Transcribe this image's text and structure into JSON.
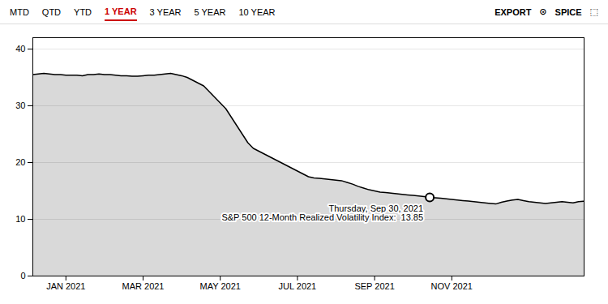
{
  "chart_data": {
    "type": "area",
    "x": [
      0,
      1,
      2,
      3,
      4,
      5,
      6,
      7,
      8,
      9,
      10,
      11,
      12,
      13,
      14,
      15,
      16,
      17,
      18,
      19,
      20,
      21,
      22,
      23,
      24,
      25,
      26,
      27,
      28,
      29,
      30,
      31,
      32,
      33,
      34,
      35,
      36,
      37,
      38,
      39,
      40,
      41,
      42,
      43,
      44,
      45,
      46,
      47,
      48,
      49,
      50,
      51,
      52,
      53,
      54,
      55,
      56,
      57,
      58,
      59,
      60,
      61,
      62,
      63,
      64,
      65,
      66,
      67,
      68,
      69,
      70,
      71,
      72,
      73,
      74,
      75,
      76,
      77,
      78,
      79,
      80,
      81,
      82,
      83,
      84,
      85,
      86,
      87,
      88,
      89,
      90,
      91,
      92,
      93,
      94,
      95,
      96,
      97,
      98,
      99,
      100
    ],
    "values": [
      35.5,
      35.6,
      35.7,
      35.6,
      35.5,
      35.5,
      35.4,
      35.4,
      35.4,
      35.3,
      35.5,
      35.5,
      35.6,
      35.5,
      35.5,
      35.4,
      35.3,
      35.3,
      35.2,
      35.2,
      35.3,
      35.4,
      35.4,
      35.5,
      35.6,
      35.7,
      35.5,
      35.3,
      35.0,
      34.5,
      34.0,
      33.5,
      32.5,
      31.5,
      30.5,
      29.5,
      28.0,
      26.5,
      25.0,
      23.5,
      22.5,
      22.0,
      21.5,
      21.0,
      20.5,
      20.0,
      19.5,
      19.0,
      18.5,
      18.0,
      17.5,
      17.3,
      17.2,
      17.1,
      17.0,
      16.9,
      16.8,
      16.5,
      16.2,
      15.8,
      15.5,
      15.2,
      15.0,
      14.8,
      14.7,
      14.6,
      14.5,
      14.4,
      14.3,
      14.2,
      14.1,
      14.0,
      13.85,
      13.8,
      13.7,
      13.6,
      13.5,
      13.4,
      13.3,
      13.2,
      13.1,
      13.0,
      12.9,
      12.8,
      12.7,
      13.0,
      13.2,
      13.4,
      13.5,
      13.3,
      13.1,
      13.0,
      12.9,
      12.8,
      12.9,
      13.0,
      13.1,
      13.0,
      12.9,
      13.1,
      13.2
    ],
    "xlim": [
      0,
      100
    ],
    "xticks": [
      {
        "value": 6,
        "label": "JAN 2021"
      },
      {
        "value": 20,
        "label": "MAR 2021"
      },
      {
        "value": 34,
        "label": "MAY 2021"
      },
      {
        "value": 48,
        "label": "JUL 2021"
      },
      {
        "value": 62,
        "label": "SEP 2021"
      },
      {
        "value": 76,
        "label": "NOV 2021"
      }
    ],
    "ylim": [
      0,
      42
    ],
    "yticks": [
      0,
      10,
      20,
      30,
      40
    ],
    "grid": true,
    "annotations": [
      {
        "x": 72,
        "y": 13.85,
        "text": [
          "Thursday, Sep 30, 2021",
          "S&P 500 12-Month Realized Volatility Index:  13.85"
        ]
      }
    ],
    "nav": {
      "items": [
        "MTD",
        "QTD",
        "YTD",
        "1 YEAR",
        "3 YEAR",
        "5 YEAR",
        "10 YEAR"
      ],
      "active": "1 YEAR",
      "color": "#cc0000",
      "right_items": [
        "EXPORT",
        "⊙",
        "SPICE",
        "⬚"
      ]
    }
  }
}
